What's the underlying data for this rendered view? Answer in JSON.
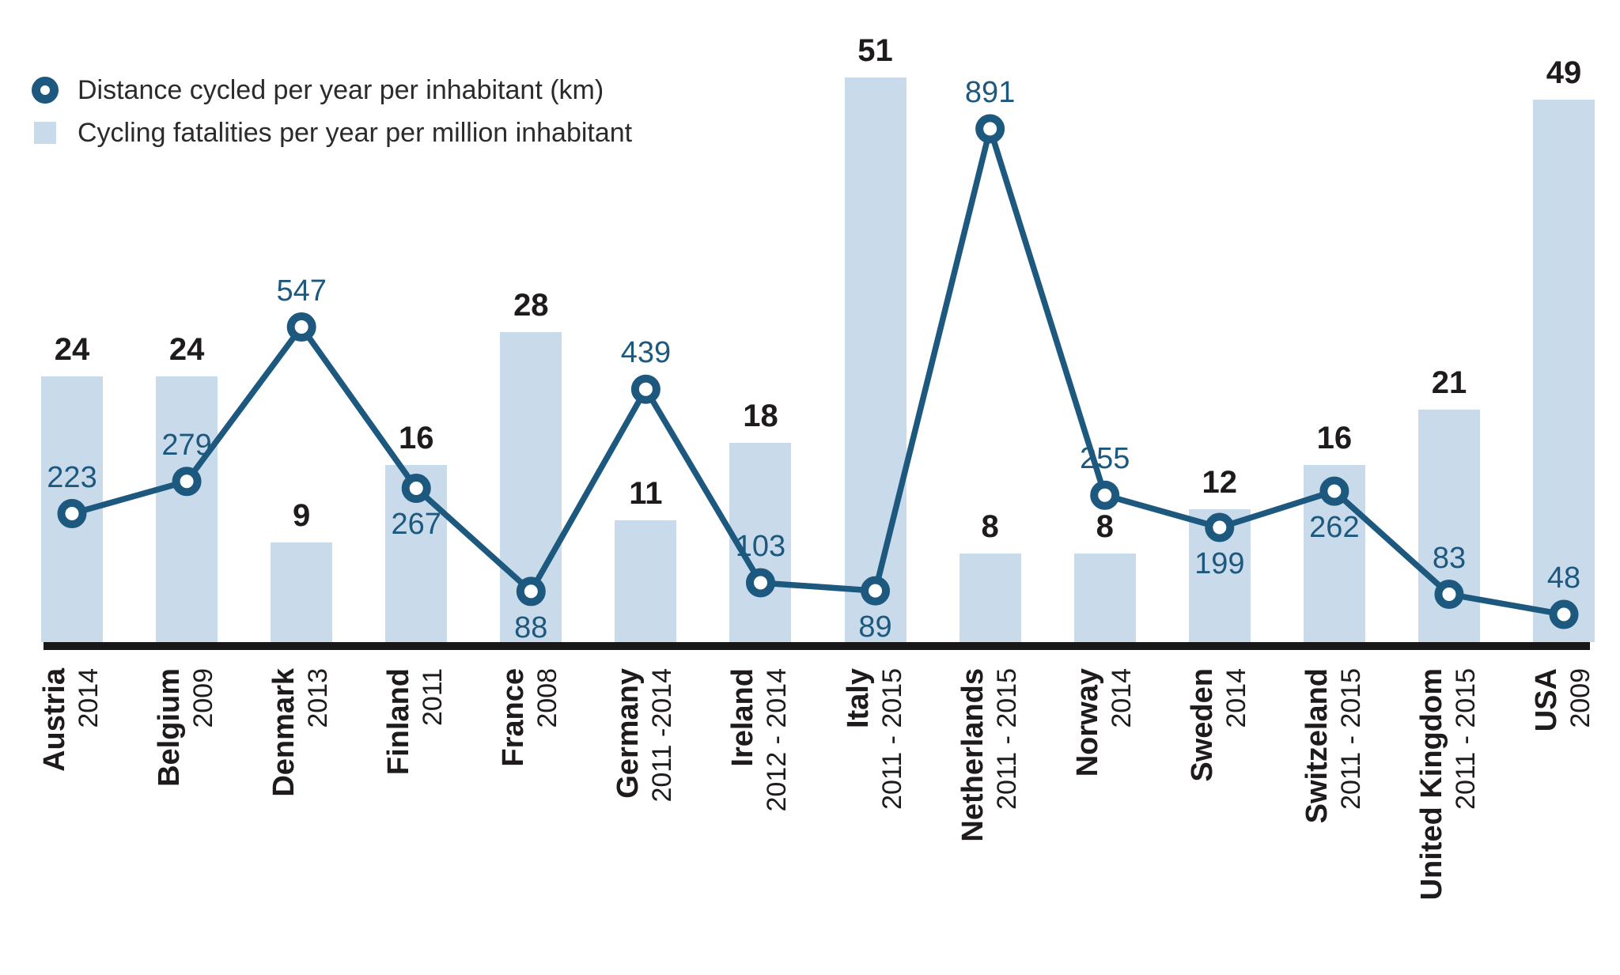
{
  "colors": {
    "bar_fill": "#c9dbeb",
    "line": "#1d587e",
    "distance_label": "#1d587e",
    "fatalities_label": "#1f1b1c",
    "axis": "#1a1718",
    "legend_text": "#2d2a2b"
  },
  "legend": {
    "items": [
      {
        "icon": "circle-marker",
        "label": "Distance cycled per year per inhabitant (km)"
      },
      {
        "icon": "square-swatch",
        "label": "Cycling fatalities per year per million inhabitant"
      }
    ]
  },
  "chart_data": {
    "type": "combo: bar + line with point markers",
    "title": "",
    "grid": false,
    "legend_position": "top-left",
    "categories": [
      {
        "country": "Austria",
        "years": "2014"
      },
      {
        "country": "Belgium",
        "years": "2009"
      },
      {
        "country": "Denmark",
        "years": "2013"
      },
      {
        "country": "Finland",
        "years": "2011"
      },
      {
        "country": "France",
        "years": "2008"
      },
      {
        "country": "Germany",
        "years": "2011 -2014"
      },
      {
        "country": "Ireland",
        "years": "2012 - 2014"
      },
      {
        "country": "Italy",
        "years": "2011 - 2015"
      },
      {
        "country": "Netherlands",
        "years": "2011 - 2015"
      },
      {
        "country": "Norway",
        "years": "2014"
      },
      {
        "country": "Sweden",
        "years": "2014"
      },
      {
        "country": "Switzeland",
        "years": "2011 - 2015"
      },
      {
        "country": "United Kingdom",
        "years": "2011 - 2015"
      },
      {
        "country": "USA",
        "years": "2009"
      }
    ],
    "series": [
      {
        "name": "Distance cycled per year per inhabitant (km)",
        "type": "line",
        "values": [
          223,
          279,
          547,
          267,
          88,
          439,
          103,
          89,
          891,
          255,
          199,
          262,
          83,
          48
        ]
      },
      {
        "name": "Cycling fatalities per year per million inhabitant",
        "type": "bar",
        "values": [
          24,
          24,
          9,
          16,
          28,
          11,
          18,
          51,
          8,
          8,
          12,
          16,
          21,
          49
        ]
      }
    ]
  }
}
